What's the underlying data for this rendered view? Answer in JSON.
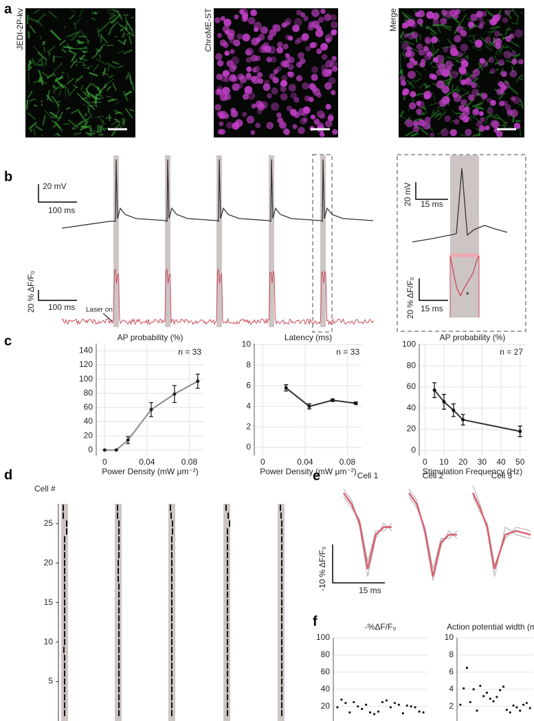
{
  "panel_labels": [
    "a",
    "b",
    "c",
    "d",
    "e",
    "f"
  ],
  "images": [
    {
      "label": "JEDI-2P-kv",
      "color": "#2e9a2e"
    },
    {
      "label": "ChroME-ST",
      "color": "#9b2d9b"
    },
    {
      "label": "Merge",
      "color": "#000000"
    }
  ],
  "panel_b": {
    "voltage_scale_y": "20 mV",
    "voltage_scale_x": "100 ms",
    "dff_scale_y": "20 % ΔF/F₀",
    "dff_scale_x": "100 ms",
    "laser": "Laser on",
    "inset_voltage_scale_y": "20 mV",
    "inset_voltage_scale_x": "15 ms",
    "inset_dff_scale_y": "20 % ΔF/F₀",
    "inset_dff_scale_x": "15 ms",
    "inset_marker": "*"
  },
  "panel_e": {
    "scale_y": "-10 % ΔF/F₀",
    "scale_x": "15 ms"
  },
  "chart_data": [
    {
      "type": "line",
      "title": "AP probability (%)",
      "xlabel": "Power Density (mW μm⁻²)",
      "annotation": "n = 33",
      "x": [
        0,
        0.011,
        0.022,
        0.044,
        0.066,
        0.088
      ],
      "values": [
        0,
        0,
        14,
        57,
        79,
        97
      ],
      "errors": [
        0,
        0,
        5,
        10,
        12,
        10
      ],
      "color": "#888888",
      "marker_color": "#222222",
      "xlim": [
        -0.008,
        0.094
      ],
      "xticks": [
        0,
        0.04,
        0.08
      ],
      "ylim": [
        -8,
        150
      ],
      "yticks": [
        0,
        20,
        40,
        60,
        80,
        100,
        120,
        140
      ],
      "grid": true
    },
    {
      "type": "line",
      "title": "Latency (ms)",
      "xlabel": "Power Density (mW μm⁻²)",
      "annotation": "n = 33",
      "x": [
        0.022,
        0.044,
        0.066,
        0.088
      ],
      "values": [
        5.8,
        4.0,
        4.6,
        4.3
      ],
      "errors": [
        0.3,
        0.25,
        0.12,
        0.12
      ],
      "color": "#333333",
      "marker_color": "#111111",
      "xlim": [
        -0.008,
        0.094
      ],
      "xticks": [
        0,
        0.04,
        0.08
      ],
      "ylim": [
        -0.8,
        10.1
      ],
      "yticks": [
        0,
        2,
        4,
        6,
        8,
        10
      ],
      "grid": true
    },
    {
      "type": "line",
      "title": "AP probability (%)",
      "xlabel": "Stimulation Frequency (Hz)",
      "annotation": "n = 27",
      "x": [
        5,
        10,
        15,
        20,
        50
      ],
      "values": [
        57,
        46,
        38,
        29,
        18
      ],
      "errors": [
        7,
        7,
        6,
        5,
        5
      ],
      "color": "#333333",
      "marker_color": "#111111",
      "xlim": [
        -3,
        53
      ],
      "xticks": [
        0,
        10,
        20,
        30,
        40,
        50
      ],
      "ylim": [
        -5,
        101
      ],
      "yticks": [
        0,
        20,
        40,
        60,
        80,
        100
      ],
      "grid": true
    },
    {
      "type": "raster",
      "ylabel": "Cell #",
      "cells": [
        1,
        2,
        3,
        4,
        5,
        6,
        7,
        8,
        9,
        10,
        11,
        12,
        13,
        14,
        15,
        16,
        17,
        18,
        19,
        20,
        21,
        22,
        23,
        24,
        25,
        26,
        27
      ],
      "ylim": [
        0,
        27.5
      ],
      "yticks": [
        5,
        10,
        15,
        20,
        25
      ],
      "xlim": [
        0,
        10
      ],
      "color": "#111111",
      "window_color": "#cdc4c4",
      "series": [
        {
          "values": [
            5,
            5,
            5,
            5,
            5,
            5,
            5,
            5,
            4,
            5,
            5,
            5,
            5,
            5,
            5,
            5,
            5,
            5,
            5,
            5,
            5,
            5,
            5,
            8,
            8,
            3,
            3
          ]
        },
        {
          "values": [
            6,
            6,
            6,
            6,
            6,
            6,
            6,
            6,
            6,
            6,
            6,
            6,
            6,
            6,
            6,
            6,
            6,
            5,
            5,
            5,
            6,
            6,
            6,
            6,
            6,
            4,
            4
          ]
        },
        {
          "values": [
            5,
            5,
            5,
            5,
            5,
            5,
            5,
            5,
            5,
            5,
            5,
            5,
            5,
            5,
            5,
            5,
            5,
            5,
            5,
            5,
            5,
            5,
            5,
            6,
            6,
            4,
            3
          ]
        },
        {
          "values": [
            6,
            6,
            6,
            6,
            6,
            6,
            6,
            6,
            6,
            6,
            6,
            6,
            6,
            6,
            6,
            6,
            6,
            6,
            6,
            6,
            6,
            6,
            6,
            6,
            9,
            7,
            4
          ]
        },
        {
          "values": [
            6,
            6,
            6,
            6,
            6,
            6,
            6,
            6,
            6,
            6,
            6,
            6,
            6,
            6,
            6,
            6,
            6,
            6,
            6,
            6,
            6,
            6,
            6,
            6,
            6,
            5,
            4
          ]
        }
      ]
    },
    {
      "type": "trace",
      "title": "Cell 1",
      "x": [
        0,
        2,
        4,
        6,
        8,
        10,
        12
      ],
      "xlim": [
        0,
        12
      ],
      "ylim": [
        -24,
        2
      ],
      "series": [
        {
          "color": "#bbbbbb",
          "values": [
            1,
            -2,
            -9,
            -22,
            -12,
            -8,
            -10
          ]
        },
        {
          "color": "#bbbbbb",
          "values": [
            -1,
            -4,
            -7,
            -18,
            -10,
            -10,
            -8
          ]
        },
        {
          "color": "#d9606e",
          "values": [
            0,
            -3,
            -8,
            -20,
            -11,
            -9,
            -9
          ]
        }
      ]
    },
    {
      "type": "trace",
      "title": "Cell 2",
      "x": [
        0,
        2,
        4,
        6,
        8,
        10,
        12
      ],
      "xlim": [
        0,
        12
      ],
      "ylim": [
        -24,
        2
      ],
      "series": [
        {
          "color": "#bbbbbb",
          "values": [
            1,
            -2,
            -11,
            -23,
            -14,
            -10,
            -12
          ]
        },
        {
          "color": "#bbbbbb",
          "values": [
            -1,
            -4,
            -9,
            -20,
            -12,
            -12,
            -10
          ]
        },
        {
          "color": "#d9606e",
          "values": [
            0,
            -3,
            -10,
            -22,
            -13,
            -11,
            -11
          ]
        }
      ]
    },
    {
      "type": "trace",
      "title": "Cell 3",
      "x": [
        0,
        2,
        4,
        6,
        9,
        12,
        16
      ],
      "xlim": [
        0,
        16
      ],
      "ylim": [
        -24,
        2
      ],
      "series": [
        {
          "color": "#bbbbbb",
          "values": [
            2,
            -3,
            -10,
            -22,
            -9,
            -11,
            -12
          ]
        },
        {
          "color": "#bbbbbb",
          "values": [
            -1,
            -5,
            -8,
            -19,
            -12,
            -9,
            -10
          ]
        },
        {
          "color": "#d9606e",
          "values": [
            0,
            -4,
            -9,
            -20,
            -11,
            -10,
            -11
          ]
        }
      ]
    },
    {
      "type": "scatter",
      "title": "-%ΔF/F₀",
      "x": [
        1,
        2,
        3,
        4,
        5,
        6,
        7,
        8,
        9,
        10,
        11,
        12,
        13,
        14,
        15,
        16,
        17,
        18,
        19,
        20,
        21,
        22
      ],
      "values": [
        19,
        28,
        24,
        13,
        25,
        20,
        17,
        22,
        13,
        11,
        14,
        25,
        27,
        19,
        24,
        22,
        12,
        21,
        20,
        19,
        14,
        13
      ],
      "xlim": [
        0,
        23
      ],
      "ylim": [
        3,
        100
      ],
      "yticks": [
        20,
        40,
        60,
        80,
        100
      ],
      "grid": true,
      "color": "#111111"
    },
    {
      "type": "scatter",
      "title": "Action potential width (ms)",
      "x": [
        1,
        2,
        3,
        4,
        5,
        6,
        7,
        8,
        9,
        10,
        11,
        12,
        13,
        14,
        15,
        16,
        17,
        18,
        19,
        20,
        21,
        22
      ],
      "values": [
        2.2,
        4.1,
        6.5,
        2.5,
        4.0,
        1.5,
        4.4,
        3.2,
        3.6,
        2.9,
        2.6,
        3.1,
        3.9,
        4.3,
        1.6,
        1.3,
        2.1,
        1.9,
        1.5,
        2.2,
        2.4,
        1.8
      ],
      "xlim": [
        0,
        23
      ],
      "ylim": [
        0.3,
        10
      ],
      "yticks": [
        2,
        4,
        6,
        8,
        10
      ],
      "grid": true,
      "color": "#111111"
    }
  ]
}
